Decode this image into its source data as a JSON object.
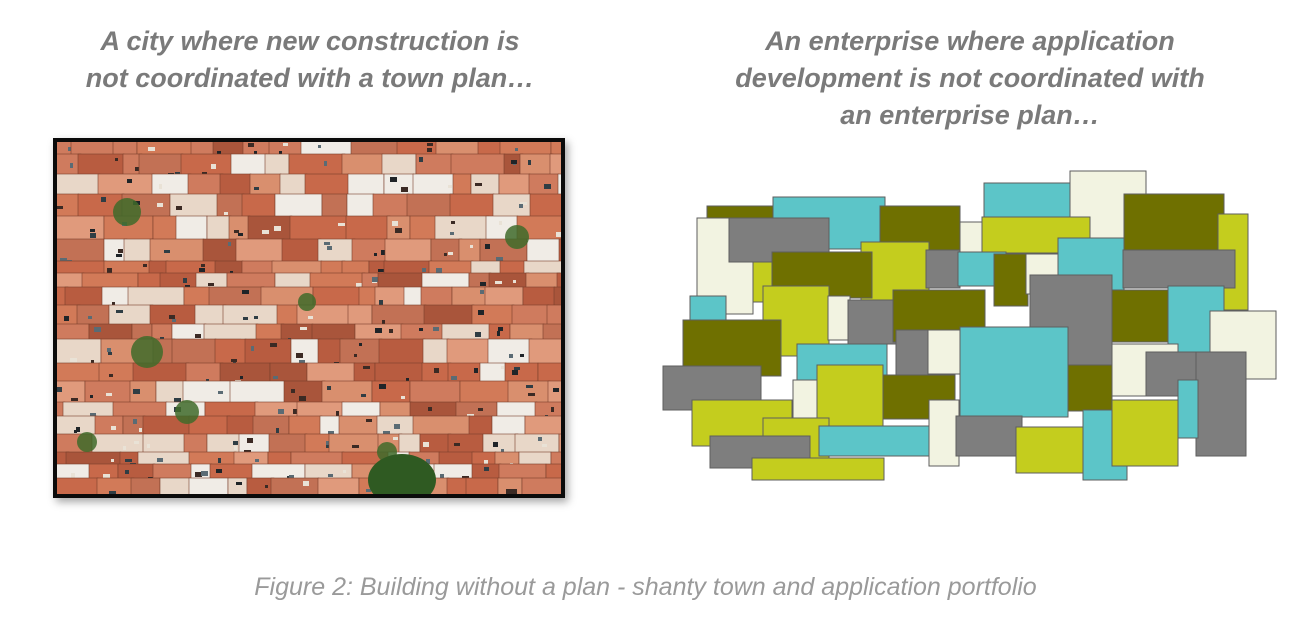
{
  "left_panel": {
    "heading_lines": [
      "A city where new construction  is",
      "not coordinated with a town plan…"
    ]
  },
  "right_panel": {
    "heading_lines": [
      "An enterprise where application",
      "development  is not coordinated with",
      "an enterprise plan…"
    ]
  },
  "caption": "Figure 2: Building without a plan - shanty town and application portfolio",
  "colors": {
    "heading_text": "#7a7a7a",
    "caption_text": "#9a9a9a",
    "block_palette": [
      "#6f7000",
      "#c4cd1e",
      "#5cc5c8",
      "#7e7e7e",
      "#f2f3e1"
    ]
  }
}
